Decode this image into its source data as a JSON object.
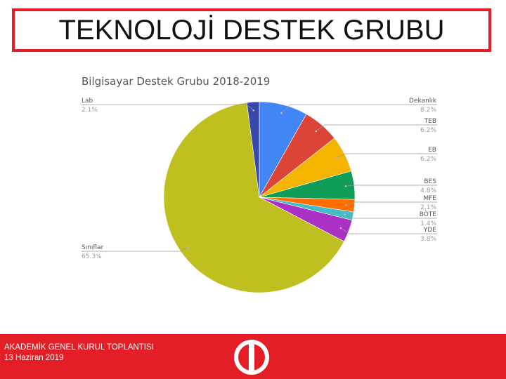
{
  "header": {
    "title": "TEKNOLOJİ DESTEK GRUBU"
  },
  "chart_data": {
    "type": "pie",
    "title": "Bilgisayar Destek Grubu 2018-2019",
    "slices": [
      {
        "label": "Dekanlık",
        "value": 8.2,
        "pct_label": "8.2%",
        "color": "#4285f4"
      },
      {
        "label": "TEB",
        "value": 6.2,
        "pct_label": "6.2%",
        "color": "#db4437"
      },
      {
        "label": "EB",
        "value": 6.2,
        "pct_label": "6.2%",
        "color": "#f4b400"
      },
      {
        "label": "BES",
        "value": 4.8,
        "pct_label": "4.8%",
        "color": "#0f9d58"
      },
      {
        "label": "MFE",
        "value": 2.1,
        "pct_label": "2.1%",
        "color": "#ff6d01"
      },
      {
        "label": "BÖTE",
        "value": 1.4,
        "pct_label": "1.4%",
        "color": "#46bdc6"
      },
      {
        "label": "YDE",
        "value": 3.8,
        "pct_label": "3.8%",
        "color": "#ab30c4"
      },
      {
        "label": "Sınıflar",
        "value": 65.3,
        "pct_label": "65.3%",
        "color": "#bfbf1f"
      },
      {
        "label": "Lab",
        "value": 2.1,
        "pct_label": "2.1%",
        "color": "#3949ab"
      }
    ]
  },
  "footer": {
    "line1": "AKADEMİK GENEL KURUL TOPLANTISI",
    "line2": "13 Haziran 2019",
    "color": "#e41e26"
  }
}
